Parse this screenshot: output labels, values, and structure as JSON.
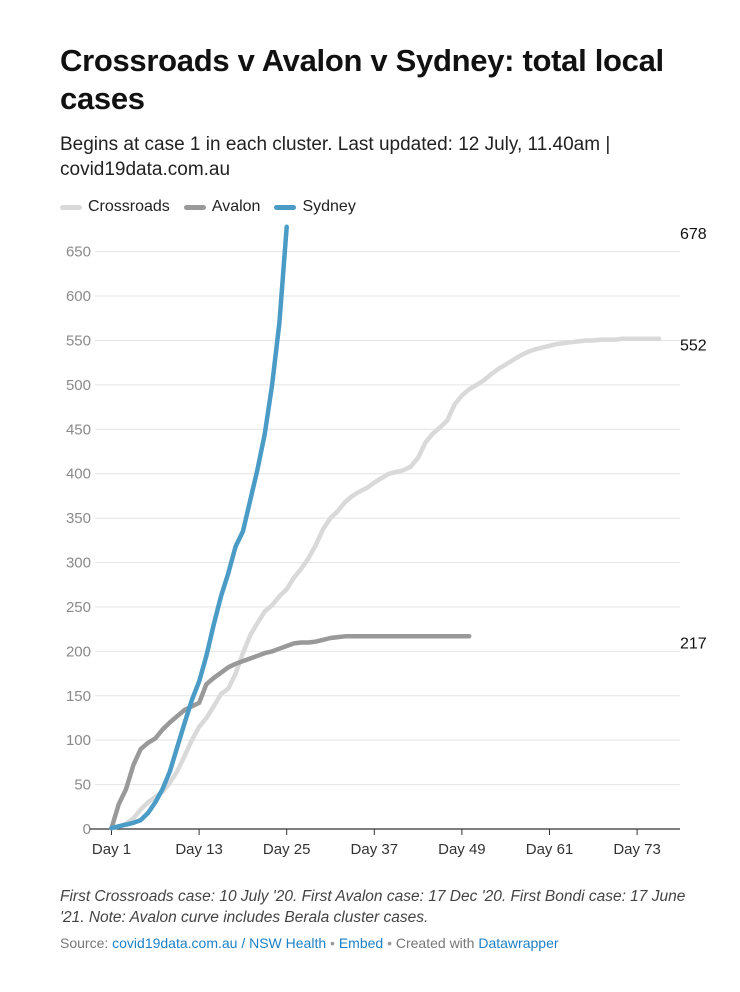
{
  "title": "Crossroads v Avalon v Sydney: total local cases",
  "subtitle": "Begins at case 1 in each cluster. Last updated: 12 July, 11.40am | covid19data.com.au",
  "notes": "First Crossroads case: 10 July '20. First Avalon case: 17 Dec '20. First Bondi case: 17 June '21. Note: Avalon curve includes Berala cluster cases.",
  "footer": {
    "source_label": "Source:",
    "source_link": "covid19data.com.au / NSW Health",
    "embed": "Embed",
    "created": "Created with",
    "tool": "Datawrapper",
    "dot": "•"
  },
  "chart_data": {
    "type": "line",
    "title": "Crossroads v Avalon v Sydney: total local cases",
    "xlabel": "",
    "ylabel": "",
    "x_ticks": [
      1,
      13,
      25,
      37,
      49,
      61,
      73
    ],
    "x_tick_labels": [
      "Day 1",
      "Day 13",
      "Day 25",
      "Day 37",
      "Day 49",
      "Day 61",
      "Day 73"
    ],
    "y_ticks": [
      0,
      50,
      100,
      150,
      200,
      250,
      300,
      350,
      400,
      450,
      500,
      550,
      600,
      650
    ],
    "xlim": [
      1,
      76
    ],
    "ylim": [
      0,
      680
    ],
    "grid": true,
    "legend": "top-left",
    "series": [
      {
        "name": "Crossroads",
        "color": "#d9d9d9",
        "end_label": "552",
        "x": [
          1,
          2,
          3,
          4,
          5,
          6,
          7,
          8,
          9,
          10,
          11,
          12,
          13,
          14,
          15,
          16,
          17,
          18,
          19,
          20,
          21,
          22,
          23,
          24,
          25,
          26,
          27,
          28,
          29,
          30,
          31,
          32,
          33,
          34,
          35,
          36,
          37,
          38,
          39,
          40,
          41,
          42,
          43,
          44,
          45,
          46,
          47,
          48,
          49,
          50,
          51,
          52,
          53,
          54,
          55,
          56,
          57,
          58,
          59,
          60,
          61,
          62,
          63,
          64,
          65,
          66,
          67,
          68,
          69,
          70,
          71,
          72,
          73,
          74,
          75,
          76
        ],
        "y": [
          1,
          3,
          6,
          12,
          22,
          30,
          36,
          42,
          52,
          65,
          82,
          100,
          115,
          125,
          138,
          152,
          158,
          175,
          198,
          218,
          232,
          245,
          252,
          262,
          270,
          283,
          293,
          305,
          320,
          338,
          350,
          358,
          368,
          375,
          380,
          384,
          390,
          395,
          400,
          402,
          404,
          408,
          418,
          435,
          445,
          452,
          460,
          478,
          488,
          495,
          500,
          505,
          512,
          518,
          523,
          528,
          533,
          537,
          540,
          542,
          544,
          546,
          547,
          548,
          549,
          550,
          550,
          551,
          551,
          551,
          552,
          552,
          552,
          552,
          552,
          552
        ]
      },
      {
        "name": "Avalon",
        "color": "#999999",
        "end_label": "217",
        "x": [
          1,
          2,
          3,
          4,
          5,
          6,
          7,
          8,
          9,
          10,
          11,
          12,
          13,
          14,
          15,
          16,
          17,
          18,
          19,
          20,
          21,
          22,
          23,
          24,
          25,
          26,
          27,
          28,
          29,
          30,
          31,
          32,
          33,
          34,
          35,
          36,
          37,
          38,
          39,
          40,
          41,
          42,
          43,
          44,
          45,
          46,
          47,
          48,
          49,
          50
        ],
        "y": [
          1,
          28,
          45,
          72,
          90,
          97,
          102,
          112,
          120,
          127,
          134,
          138,
          142,
          163,
          170,
          176,
          182,
          186,
          189,
          192,
          195,
          198,
          200,
          203,
          206,
          209,
          210,
          210,
          211,
          213,
          215,
          216,
          217,
          217,
          217,
          217,
          217,
          217,
          217,
          217,
          217,
          217,
          217,
          217,
          217,
          217,
          217,
          217,
          217,
          217
        ]
      },
      {
        "name": "Sydney",
        "color": "#4a9cc7",
        "end_label": "678",
        "x": [
          1,
          2,
          3,
          4,
          5,
          6,
          7,
          8,
          9,
          10,
          11,
          12,
          13,
          14,
          15,
          16,
          17,
          18,
          19,
          20,
          21,
          22,
          23,
          24,
          25
        ],
        "y": [
          1,
          3,
          5,
          7,
          10,
          18,
          30,
          45,
          65,
          92,
          119,
          145,
          166,
          195,
          230,
          262,
          288,
          318,
          335,
          370,
          405,
          445,
          500,
          570,
          678
        ]
      }
    ]
  }
}
